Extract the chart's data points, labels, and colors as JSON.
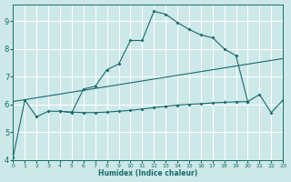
{
  "xlabel": "Humidex (Indice chaleur)",
  "background_color": "#cce8e8",
  "grid_color": "#ffffff",
  "line_color": "#1a6b6b",
  "xlim": [
    0,
    23
  ],
  "ylim": [
    4,
    9.6
  ],
  "yticks": [
    4,
    5,
    6,
    7,
    8,
    9
  ],
  "xticks": [
    0,
    1,
    2,
    3,
    4,
    5,
    6,
    7,
    8,
    9,
    10,
    11,
    12,
    13,
    14,
    15,
    16,
    17,
    18,
    19,
    20,
    21,
    22,
    23
  ],
  "line1_x": [
    0,
    1,
    2,
    3,
    4,
    5,
    6,
    7,
    8,
    9,
    10,
    11,
    12,
    13,
    14,
    15,
    16,
    17,
    18,
    19,
    20,
    21,
    22,
    23
  ],
  "line1_y": [
    4.1,
    6.15,
    5.55,
    5.75,
    5.75,
    5.7,
    6.55,
    6.65,
    7.25,
    7.45,
    8.3,
    8.3,
    9.35,
    9.25,
    8.95,
    8.7,
    8.5,
    8.4,
    8.0,
    7.75,
    6.1,
    6.35,
    5.7,
    6.15
  ],
  "line2_x": [
    4,
    5,
    6,
    7,
    8,
    9,
    10,
    11,
    12,
    13,
    14,
    15,
    16,
    17,
    18,
    19,
    20
  ],
  "line2_y": [
    5.75,
    5.72,
    5.7,
    5.7,
    5.72,
    5.75,
    5.78,
    5.83,
    5.88,
    5.93,
    5.97,
    6.0,
    6.02,
    6.05,
    6.07,
    6.09,
    6.1
  ],
  "line3_x": [
    0,
    23
  ],
  "line3_y": [
    6.1,
    7.65
  ]
}
